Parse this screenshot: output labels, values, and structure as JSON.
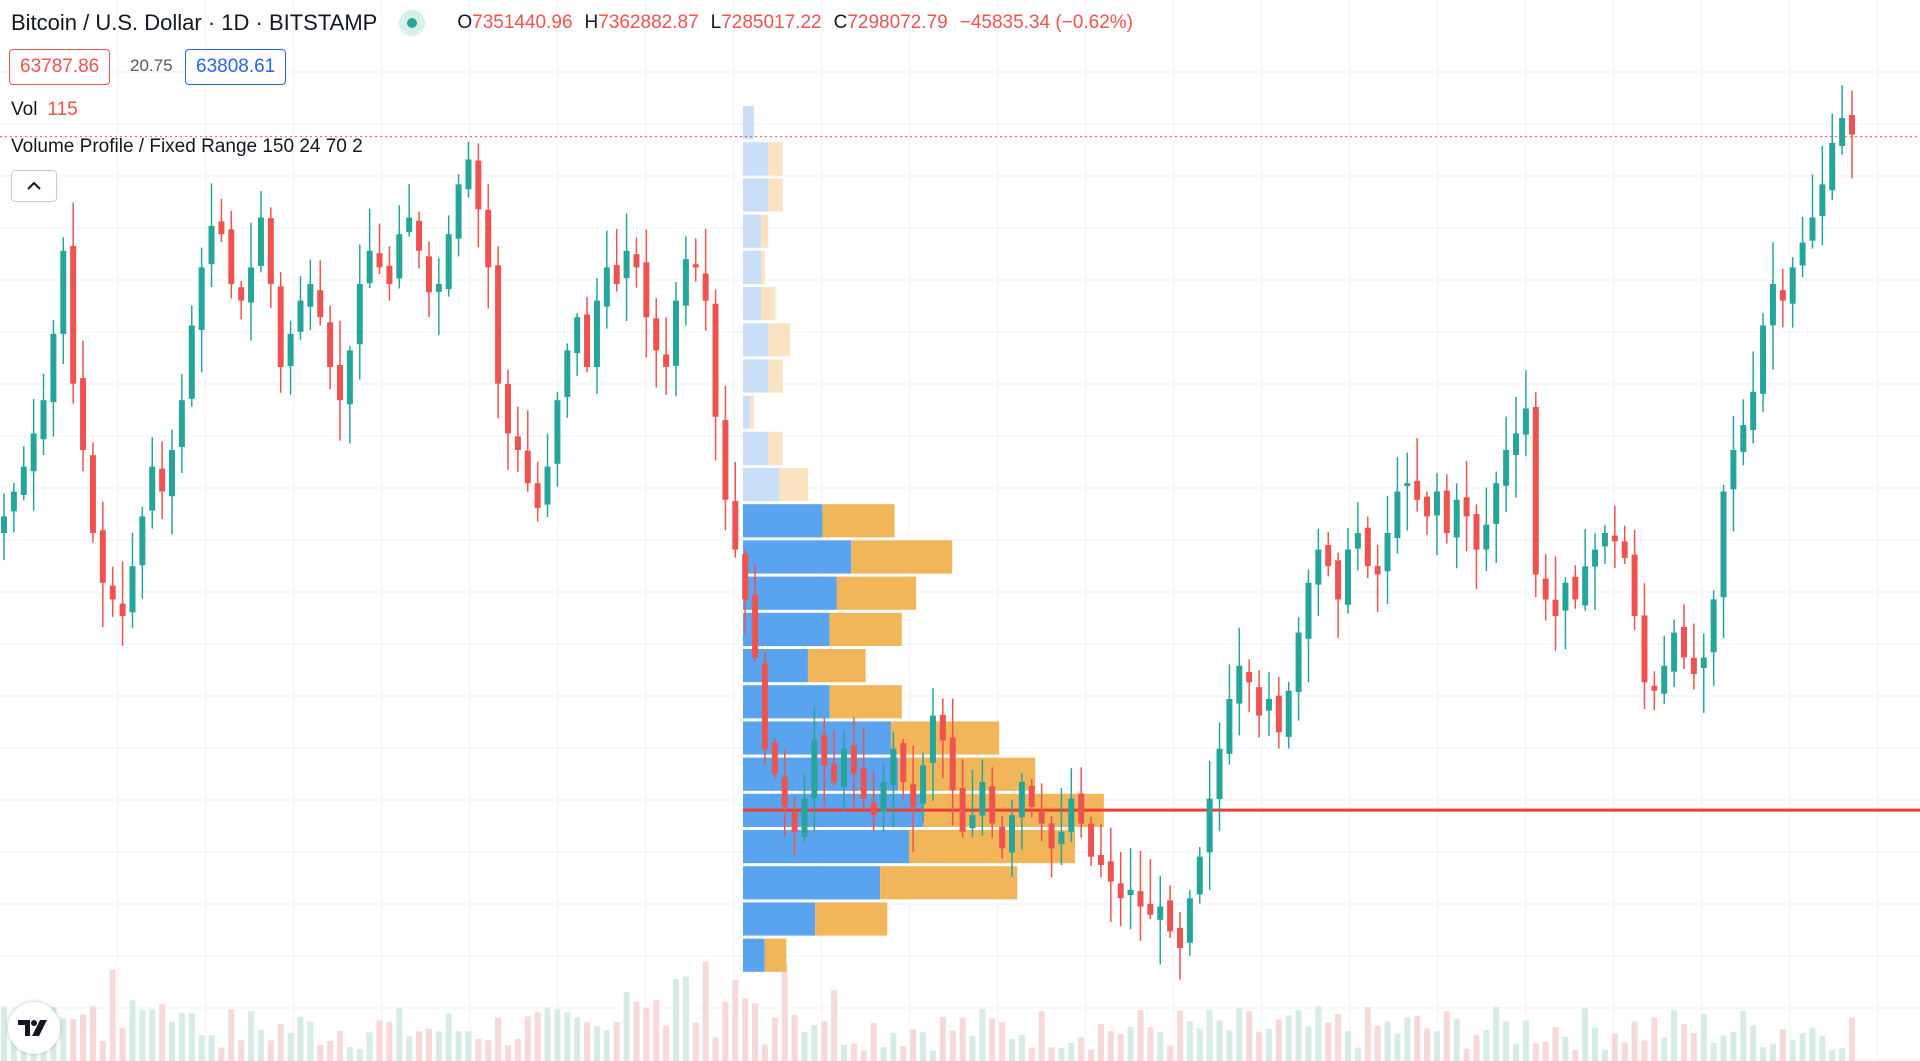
{
  "header": {
    "symbol": "Bitcoin / U.S. Dollar · 1D · BITSTAMP",
    "open_label": "O",
    "open": "7351440.96",
    "high_label": "H",
    "high": "7362882.87",
    "low_label": "L",
    "low": "7285017.22",
    "close_label": "C",
    "close": "7298072.79",
    "change": "−45835.34 (−0.62%)",
    "bid": "63787.86",
    "spread": "20.75",
    "ask": "63808.61"
  },
  "indicators": {
    "vol_label": "Vol",
    "vol_value": "115",
    "volume_profile_label": "Volume Profile / Fixed Range 150 24 70 2",
    "collapse_icon": "chevron-up-icon"
  },
  "colors": {
    "up": "#26a69a",
    "down": "#ef5350",
    "vp_up_value_area": "#5aa3ee",
    "vp_down_value_area": "#f2b65a",
    "vp_up_outside": "#c9dff7",
    "vp_down_outside": "#fbe2c0",
    "poc_line": "#f23b2f",
    "grid": "#edf0f4",
    "vol_up": "#d7ece7",
    "vol_down": "#f6d9d8"
  },
  "chart_data": {
    "type": "candlestick",
    "title": "Bitcoin / U.S. Dollar",
    "interval": "1D",
    "exchange": "BITSTAMP",
    "grid": true,
    "y_scale": "price (not labeled)",
    "last_candle": {
      "open": 7351440.96,
      "high": 7362882.87,
      "low": 7285017.22,
      "close": 7298072.79
    },
    "series_shape_normalized_close": [
      0.52,
      0.55,
      0.58,
      0.62,
      0.66,
      0.74,
      0.84,
      0.68,
      0.6,
      0.5,
      0.44,
      0.42,
      0.4,
      0.46,
      0.52,
      0.58,
      0.55,
      0.6,
      0.66,
      0.75,
      0.82,
      0.87,
      0.86,
      0.8,
      0.78,
      0.82,
      0.88,
      0.8,
      0.7,
      0.74,
      0.78,
      0.8,
      0.76,
      0.7,
      0.66,
      0.72,
      0.8,
      0.84,
      0.82,
      0.8,
      0.86,
      0.88,
      0.84,
      0.79,
      0.8,
      0.86,
      0.92,
      0.95,
      0.89,
      0.82,
      0.68,
      0.62,
      0.6,
      0.56,
      0.53,
      0.58,
      0.66,
      0.72,
      0.76,
      0.7,
      0.78,
      0.82,
      0.8,
      0.84,
      0.82,
      0.76,
      0.72,
      0.7,
      0.78,
      0.83,
      0.82,
      0.78,
      0.64,
      0.54,
      0.48,
      0.42,
      0.35,
      0.24,
      0.21,
      0.17,
      0.14,
      0.18,
      0.25,
      0.22,
      0.2,
      0.24,
      0.21,
      0.18,
      0.16,
      0.2,
      0.24,
      0.2,
      0.17,
      0.22,
      0.28,
      0.25,
      0.19,
      0.14,
      0.16,
      0.2,
      0.15,
      0.12,
      0.16,
      0.2,
      0.17,
      0.15,
      0.12,
      0.14,
      0.18,
      0.15,
      0.11,
      0.1,
      0.08,
      0.06,
      0.07,
      0.05,
      0.04,
      0.05,
      0.02,
      0.0,
      0.06,
      0.11,
      0.18,
      0.24,
      0.3,
      0.34,
      0.32,
      0.28,
      0.3,
      0.26,
      0.31,
      0.38,
      0.44,
      0.48,
      0.46,
      0.42,
      0.48,
      0.5,
      0.46,
      0.45,
      0.5,
      0.55,
      0.56,
      0.54,
      0.52,
      0.55,
      0.5,
      0.54,
      0.52,
      0.48,
      0.51,
      0.56,
      0.6,
      0.62,
      0.65,
      0.45,
      0.42,
      0.4,
      0.44,
      0.42,
      0.46,
      0.48,
      0.5,
      0.49,
      0.47,
      0.4,
      0.32,
      0.31,
      0.34,
      0.38,
      0.35,
      0.33,
      0.35,
      0.42,
      0.55,
      0.6,
      0.63,
      0.67,
      0.75,
      0.8,
      0.78,
      0.82,
      0.85,
      0.88,
      0.92,
      0.97,
      1.0,
      0.98
    ],
    "volume_profile": {
      "rows_top_to_bottom": [
        {
          "up": 0.03,
          "down": 0.0
        },
        {
          "up": 0.07,
          "down": 0.04
        },
        {
          "up": 0.07,
          "down": 0.04
        },
        {
          "up": 0.05,
          "down": 0.02
        },
        {
          "up": 0.05,
          "down": 0.01
        },
        {
          "up": 0.05,
          "down": 0.04
        },
        {
          "up": 0.07,
          "down": 0.06
        },
        {
          "up": 0.07,
          "down": 0.04
        },
        {
          "up": 0.02,
          "down": 0.01
        },
        {
          "up": 0.07,
          "down": 0.04
        },
        {
          "up": 0.1,
          "down": 0.08
        },
        {
          "up": 0.22,
          "down": 0.2
        },
        {
          "up": 0.3,
          "down": 0.28
        },
        {
          "up": 0.26,
          "down": 0.22
        },
        {
          "up": 0.24,
          "down": 0.2
        },
        {
          "up": 0.18,
          "down": 0.16
        },
        {
          "up": 0.24,
          "down": 0.2
        },
        {
          "up": 0.41,
          "down": 0.3
        },
        {
          "up": 0.43,
          "down": 0.38
        },
        {
          "up": 0.5,
          "down": 0.5
        },
        {
          "up": 0.46,
          "down": 0.46
        },
        {
          "up": 0.38,
          "down": 0.38
        },
        {
          "up": 0.2,
          "down": 0.2
        },
        {
          "up": 0.06,
          "down": 0.06
        }
      ],
      "value_area_rows": [
        11,
        23
      ],
      "poc_row": 19
    }
  }
}
